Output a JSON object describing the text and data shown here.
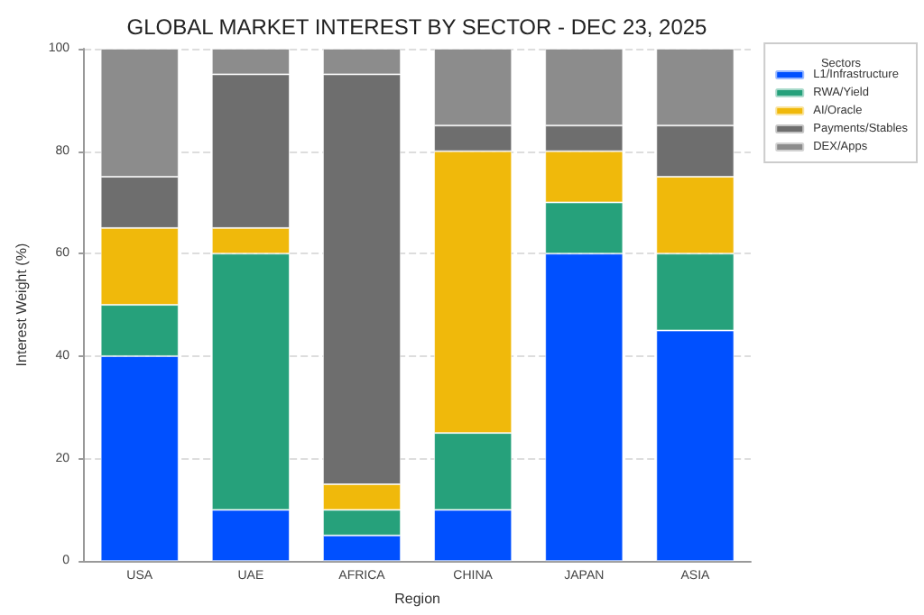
{
  "chart_data": {
    "type": "bar",
    "title": "GLOBAL MARKET INTEREST BY SECTOR - DEC 23, 2025",
    "xlabel": "Region",
    "ylabel": "Interest Weight (%)",
    "legend_title": "Sectors",
    "categories": [
      "USA",
      "UAE",
      "AFRICA",
      "CHINA",
      "JAPAN",
      "ASIA"
    ],
    "stacked": true,
    "series": [
      {
        "name": "L1/Infrastructure",
        "color": "#0050ff",
        "values": [
          40,
          10,
          5,
          10,
          60,
          45
        ]
      },
      {
        "name": "RWA/Yield",
        "color": "#26a17b",
        "values": [
          10,
          50,
          5,
          15,
          10,
          15
        ]
      },
      {
        "name": "AI/Oracle",
        "color": "#f0b90b",
        "values": [
          15,
          5,
          5,
          55,
          10,
          15
        ]
      },
      {
        "name": "Payments/Stables",
        "color": "#6e6e6e",
        "values": [
          10,
          30,
          80,
          5,
          5,
          10
        ]
      },
      {
        "name": "DEX/Apps",
        "color": "#8c8c8c",
        "values": [
          25,
          5,
          5,
          15,
          15,
          15
        ]
      }
    ],
    "ylim": [
      0,
      100
    ],
    "yticks": [
      0,
      20,
      40,
      60,
      80,
      100
    ],
    "grid": "y",
    "legend": "top right"
  }
}
